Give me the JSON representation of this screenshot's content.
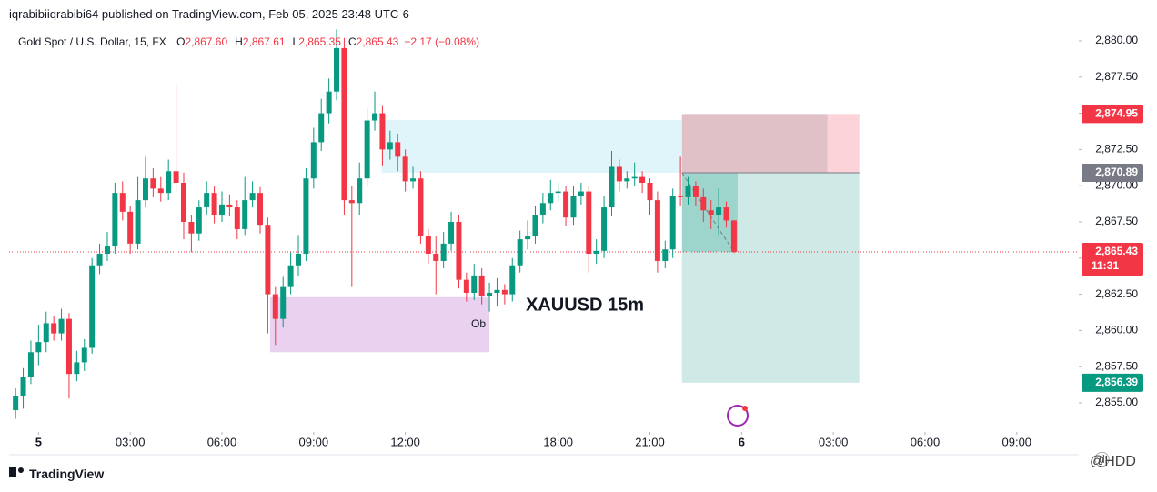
{
  "chart_data": {
    "type": "candlestick",
    "header": "iqrabibiiqrabibi64 published on TradingView.com, Feb 05, 2025 23:48 UTC-6",
    "symbol": "Gold Spot / U.S. Dollar, 15, FX",
    "ohlc_legend": [
      {
        "key": "O",
        "value": 2867.6,
        "label": "2,867.60"
      },
      {
        "key": "H",
        "value": 2867.61,
        "label": "2,867.61"
      },
      {
        "key": "L",
        "value": 2865.35,
        "label": "2,865.35"
      },
      {
        "key": "C",
        "value": 2865.43,
        "label": "2,865.43"
      }
    ],
    "change": "−2.17 (−0.08%)",
    "annotation": "XAUUSD 15m",
    "footer": "TradingView",
    "watermark": "@HDD",
    "countdown": "11:31",
    "xlim": [
      -0.85,
      139
    ],
    "ylim": [
      2852.99,
      2880.94
    ],
    "xticks": [
      {
        "value": 3,
        "label": "5"
      },
      {
        "value": 15,
        "label": "03:00"
      },
      {
        "value": 27,
        "label": "06:00"
      },
      {
        "value": 39,
        "label": "09:00"
      },
      {
        "value": 51,
        "label": "12:00"
      },
      {
        "value": 71,
        "label": "18:00"
      },
      {
        "value": 83,
        "label": "21:00"
      },
      {
        "value": 95,
        "label": "6"
      },
      {
        "value": 107,
        "label": "03:00"
      },
      {
        "value": 119,
        "label": "06:00"
      },
      {
        "value": 131,
        "label": "09:00"
      }
    ],
    "yticks": [
      {
        "value": 2855,
        "label": "2,855.00"
      },
      {
        "value": 2857.5,
        "label": "2,857.50"
      },
      {
        "value": 2860,
        "label": "2,860.00"
      },
      {
        "value": 2862.5,
        "label": "2,862.50"
      },
      {
        "value": 2865,
        "label": "2,865.00"
      },
      {
        "value": 2867.5,
        "label": "2,867.50"
      },
      {
        "value": 2870,
        "label": "2,870.00"
      },
      {
        "value": 2872.5,
        "label": "2,872.50"
      },
      {
        "value": 2875,
        "label": "2,875.00"
      },
      {
        "value": 2877.5,
        "label": "2,877.50"
      },
      {
        "value": 2880,
        "label": "2,880.00"
      }
    ],
    "up_color": "#089981",
    "down_color": "#f23645",
    "open": [
      2854.5,
      2855.5,
      2856.8,
      2858.5,
      2859.2,
      2860.5,
      2859.8,
      2860.8,
      2857.0,
      2857.8,
      2858.8,
      2864.5,
      2865.3,
      2865.8,
      2869.5,
      2868.2,
      2866.0,
      2869.0,
      2870.5,
      2869.8,
      2869.5,
      2871.0,
      2870.2,
      2867.5,
      2866.7,
      2868.5,
      2869.5,
      2868.0,
      2868.7,
      2868.5,
      2867.0,
      2869.0,
      2869.5,
      2867.3,
      2862.5,
      2860.8,
      2863.0,
      2864.5,
      2865.3,
      2870.5,
      2873.0,
      2875.0,
      2876.5,
      2879.5,
      2869.0,
      2868.8,
      2870.5,
      2874.5,
      2875.0,
      2872.5,
      2873.0,
      2872.0,
      2870.3,
      2870.5,
      2866.5,
      2865.3,
      2864.8,
      2866.0,
      2867.5,
      2863.5,
      2862.6,
      2863.8,
      2862.4,
      2862.6,
      2862.8,
      2862.5,
      2864.5,
      2866.3,
      2866.5,
      2868.0,
      2868.8,
      2869.5,
      2869.6,
      2867.8,
      2869.3,
      2869.6,
      2865.3,
      2865.5,
      2868.5,
      2871.3,
      2870.3,
      2870.5,
      2870.6,
      2870.2,
      2869.0,
      2864.8,
      2865.6,
      2869.3,
      2869.2,
      2870.0,
      2869.2,
      2868.3,
      2868.0,
      2868.5,
      2867.6
    ],
    "high": [
      2856.0,
      2857.4,
      2859.3,
      2860.4,
      2861.3,
      2861.0,
      2861.5,
      2861.2,
      2858.6,
      2859.4,
      2865.0,
      2866.0,
      2866.8,
      2870.2,
      2870.3,
      2868.6,
      2870.6,
      2872.0,
      2871.2,
      2870.6,
      2871.8,
      2876.9,
      2870.9,
      2868.0,
      2869.0,
      2870.3,
      2870.0,
      2869.6,
      2869.4,
      2869.0,
      2870.6,
      2870.3,
      2869.9,
      2867.8,
      2863.0,
      2863.7,
      2865.4,
      2866.6,
      2871.2,
      2874.0,
      2876.0,
      2877.4,
      2880.8,
      2880.2,
      2870.0,
      2871.6,
      2875.3,
      2876.5,
      2875.5,
      2873.8,
      2873.6,
      2872.5,
      2871.3,
      2871.0,
      2867.0,
      2866.5,
      2866.8,
      2868.2,
      2868.0,
      2864.0,
      2864.6,
      2864.3,
      2863.3,
      2863.6,
      2863.2,
      2865.0,
      2866.9,
      2867.6,
      2868.6,
      2869.5,
      2870.4,
      2870.2,
      2870.0,
      2870.0,
      2870.2,
      2870.0,
      2866.3,
      2869.3,
      2872.4,
      2871.8,
      2871.0,
      2871.6,
      2871.0,
      2870.5,
      2869.6,
      2866.2,
      2869.8,
      2872.0,
      2870.6,
      2870.3,
      2869.8,
      2869.0,
      2869.8,
      2868.9,
      2867.61
    ],
    "low": [
      2853.9,
      2854.6,
      2856.3,
      2857.6,
      2858.5,
      2859.3,
      2859.3,
      2855.3,
      2856.5,
      2857.2,
      2858.4,
      2863.9,
      2864.8,
      2865.3,
      2867.6,
      2865.3,
      2865.6,
      2868.5,
      2869.2,
      2868.9,
      2869.0,
      2869.6,
      2866.3,
      2865.4,
      2866.2,
      2868.0,
      2867.4,
      2867.5,
      2867.9,
      2866.3,
      2866.6,
      2868.5,
      2866.7,
      2859.8,
      2859.0,
      2860.2,
      2862.5,
      2863.8,
      2864.8,
      2869.8,
      2872.4,
      2874.3,
      2875.9,
      2868.0,
      2863.0,
      2868.0,
      2870.0,
      2873.8,
      2871.4,
      2871.8,
      2871.0,
      2869.6,
      2869.8,
      2866.0,
      2864.6,
      2862.5,
      2864.3,
      2865.5,
      2862.9,
      2862.0,
      2862.1,
      2861.8,
      2861.3,
      2861.7,
      2861.8,
      2862.0,
      2864.0,
      2865.6,
      2866.0,
      2867.4,
      2868.3,
      2868.9,
      2867.2,
      2867.3,
      2868.7,
      2864.0,
      2864.6,
      2865.0,
      2867.9,
      2869.6,
      2869.8,
      2870.0,
      2869.5,
      2868.0,
      2864.0,
      2864.3,
      2865.0,
      2868.6,
      2868.7,
      2868.6,
      2867.5,
      2867.0,
      2866.6,
      2867.1,
      2865.35
    ],
    "close": [
      2855.5,
      2856.8,
      2858.5,
      2859.2,
      2860.5,
      2859.8,
      2860.8,
      2857.0,
      2857.8,
      2858.8,
      2864.5,
      2865.3,
      2865.8,
      2869.5,
      2868.2,
      2866.0,
      2869.0,
      2870.5,
      2869.8,
      2869.5,
      2871.0,
      2870.2,
      2867.5,
      2866.7,
      2868.5,
      2869.5,
      2868.0,
      2868.7,
      2868.5,
      2867.0,
      2869.0,
      2869.5,
      2867.3,
      2862.5,
      2860.8,
      2863.0,
      2864.5,
      2865.3,
      2870.5,
      2873.0,
      2875.0,
      2876.5,
      2879.5,
      2869.0,
      2868.8,
      2870.5,
      2874.5,
      2875.0,
      2872.5,
      2873.0,
      2872.0,
      2870.3,
      2870.5,
      2866.5,
      2865.3,
      2864.8,
      2866.0,
      2867.5,
      2863.5,
      2862.6,
      2863.8,
      2862.4,
      2862.6,
      2862.8,
      2862.5,
      2864.5,
      2866.3,
      2866.5,
      2868.0,
      2868.8,
      2869.5,
      2869.6,
      2867.8,
      2869.3,
      2869.6,
      2865.3,
      2865.5,
      2868.5,
      2871.3,
      2870.3,
      2870.5,
      2870.6,
      2870.2,
      2869.0,
      2864.8,
      2865.6,
      2869.3,
      2869.2,
      2870.0,
      2869.2,
      2868.3,
      2868.0,
      2868.5,
      2867.6,
      2865.43
    ],
    "zones": [
      {
        "x": [
          47.9,
          87.2
        ],
        "y": [
          2870.89,
          2874.54
        ],
        "color": "#dff5f9"
      },
      {
        "x": [
          33.3,
          62.0
        ],
        "y": [
          2858.5,
          2862.3
        ],
        "color": "#ead1f0",
        "label": "Ob"
      }
    ],
    "position": {
      "x": [
        87.2,
        110.4
      ],
      "entry": 2870.89,
      "stop": 2874.95,
      "target": 2856.39,
      "stop_color": "#fbd3d8",
      "target_color": "#cfeae6"
    },
    "price_labels": [
      {
        "value": 2874.95,
        "label": "2,874.95",
        "color": "#f23645"
      },
      {
        "value": 2870.89,
        "label": "2,870.89",
        "color": "#787b86"
      },
      {
        "value": 2865.43,
        "label": "2,865.43",
        "color": "#f23645"
      },
      {
        "value": 2856.39,
        "label": "2,856.39",
        "color": "#089981"
      }
    ]
  }
}
